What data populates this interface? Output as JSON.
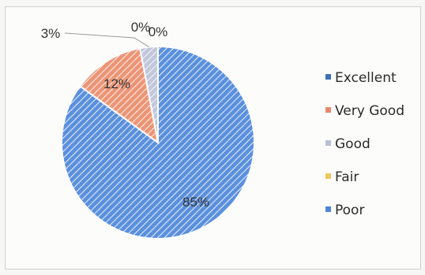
{
  "chart_data": {
    "type": "pie",
    "categories": [
      "Excellent",
      "Very Good",
      "Good",
      "Fair",
      "Poor"
    ],
    "values": [
      0,
      12,
      3,
      0,
      85
    ],
    "labels": [
      "0%",
      "12%",
      "3%",
      "0%",
      "85%"
    ],
    "colors": [
      "#3f6fb8",
      "#e8876a",
      "#b8bfd6",
      "#efc65a",
      "#4f86d6"
    ],
    "legend_position": "right",
    "title": "",
    "xlabel": "",
    "ylabel": ""
  }
}
